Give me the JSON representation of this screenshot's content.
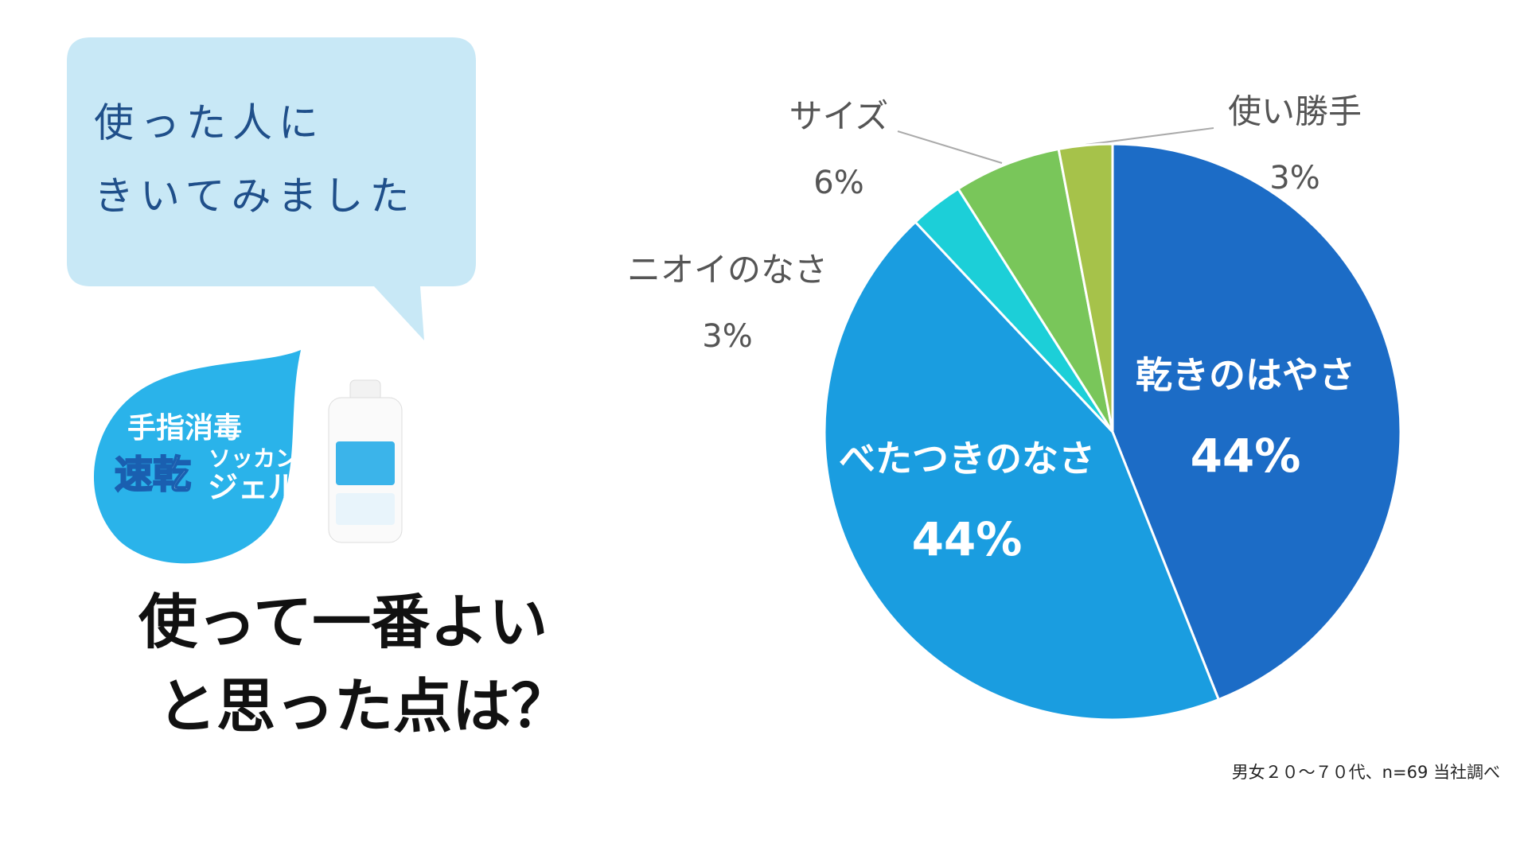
{
  "bubble": {
    "lines": [
      "使った人に",
      "きいてみました"
    ]
  },
  "badge": {
    "lines": [
      "手指消毒",
      "速乾",
      "ソッカン",
      "ジェル"
    ]
  },
  "heading": {
    "lines": [
      "使って一番よい",
      "と思った点は？"
    ]
  },
  "note": "男女２０～７０代、n=69 当社調べ",
  "chart_data": {
    "type": "pie",
    "categories": [
      "乾きのはやさ",
      "べたつきのなさ",
      "ニオイのなさ",
      "サイズ",
      "使い勝手"
    ],
    "values": [
      44,
      44,
      3,
      6,
      3
    ],
    "value_labels": [
      "44%",
      "44%",
      "3%",
      "6%",
      "3%"
    ],
    "colors": [
      "#1c6cc6",
      "#1a9de0",
      "#1ccfd8",
      "#79c65a",
      "#a6c24a"
    ]
  }
}
